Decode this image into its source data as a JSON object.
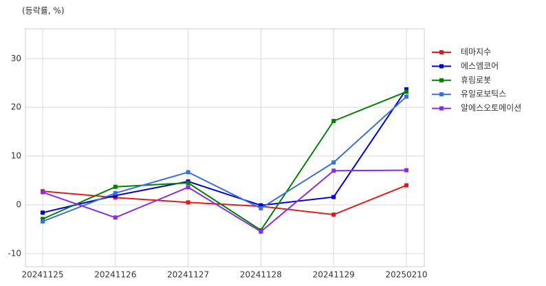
{
  "chart_data": {
    "type": "line",
    "y_label": "(등락률, %)",
    "categories": [
      "20241125",
      "20241126",
      "20241127",
      "20241128",
      "20241129",
      "20250210"
    ],
    "series": [
      {
        "name": "테마지수",
        "color": "#e31a1c",
        "values": [
          2.8,
          1.5,
          0.5,
          -0.3,
          -2.0,
          4.0
        ]
      },
      {
        "name": "에스엠코어",
        "color": "#0000cc",
        "values": [
          -1.6,
          1.9,
          4.8,
          -0.1,
          1.6,
          23.7
        ]
      },
      {
        "name": "휴림로봇",
        "color": "#008000",
        "values": [
          -2.9,
          3.7,
          4.5,
          -5.2,
          17.2,
          23.2
        ]
      },
      {
        "name": "유일로보틱스",
        "color": "#3a6fd8",
        "values": [
          -3.4,
          2.4,
          6.7,
          -0.7,
          8.7,
          22.2
        ]
      },
      {
        "name": "알에스오토메이션",
        "color": "#8b2be2",
        "values": [
          2.6,
          -2.6,
          3.6,
          -5.5,
          7.0,
          7.1
        ]
      }
    ],
    "ylim": [
      -12.7,
      36.1
    ],
    "yticks": [
      -10,
      0,
      10,
      20,
      30
    ],
    "grid": true,
    "legend": "right"
  }
}
